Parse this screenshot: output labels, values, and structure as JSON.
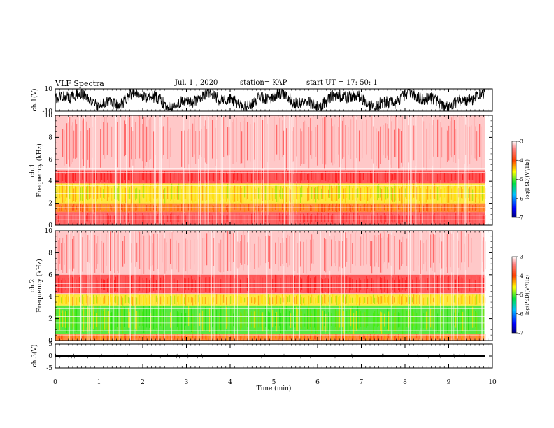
{
  "header": {
    "title": "VLF Spectra",
    "date": "Jul. 1 , 2020",
    "station": "station= KAP",
    "start": "start UT = 17: 50: 1"
  },
  "colors": {
    "spec_low": "#ff2020",
    "spec_mid": "#ffe000",
    "spec_high": "#20e000",
    "trace": "#000000"
  },
  "chart_data": [
    {
      "type": "line",
      "name": "ch1-waveform",
      "ylabel": "ch.1(V)",
      "ylim": [
        -10,
        10
      ],
      "yticks": [
        "10",
        "-10"
      ],
      "xlim": [
        0,
        10
      ]
    },
    {
      "type": "heatmap",
      "name": "ch1-spectrogram",
      "ylabel": "ch.1\nFrequency (kHz)",
      "ylabel_lines": [
        "ch.1",
        "Frequency (kHz)"
      ],
      "ylim": [
        0,
        10
      ],
      "yticks": [
        "0",
        "2",
        "4",
        "6",
        "8",
        "10"
      ],
      "bands": [
        {
          "from": 0,
          "to": 1.2,
          "level": "red"
        },
        {
          "from": 1.2,
          "to": 2.0,
          "level": "orange"
        },
        {
          "from": 2.0,
          "to": 3.8,
          "level": "yellow"
        },
        {
          "from": 3.8,
          "to": 5.0,
          "level": "red-dense"
        },
        {
          "from": 5.0,
          "to": 10,
          "level": "red-sparse"
        }
      ],
      "colorbar": {
        "label": "log(PSD)(V²/Hz)",
        "range": [
          -7,
          -3
        ],
        "ticks": [
          "-3",
          "-4",
          "-5",
          "-6",
          "-7"
        ]
      }
    },
    {
      "type": "heatmap",
      "name": "ch2-spectrogram",
      "ylabel": "ch.2\nFrequency (kHz)",
      "ylabel_lines": [
        "ch.2",
        "Frequency (kHz)"
      ],
      "ylim": [
        0,
        10
      ],
      "yticks": [
        "0",
        "2",
        "4",
        "6",
        "8",
        "10"
      ],
      "bands": [
        {
          "from": 0,
          "to": 0.6,
          "level": "orange"
        },
        {
          "from": 0.6,
          "to": 3.2,
          "level": "green"
        },
        {
          "from": 3.2,
          "to": 4.2,
          "level": "yellow"
        },
        {
          "from": 4.2,
          "to": 6.0,
          "level": "red-dense"
        },
        {
          "from": 6.0,
          "to": 10,
          "level": "red-sparse"
        }
      ],
      "colorbar": {
        "label": "log(PSD)(V²/Hz)",
        "range": [
          -7,
          -3
        ],
        "ticks": [
          "-3",
          "-4",
          "-5",
          "-6",
          "-7"
        ]
      }
    },
    {
      "type": "line",
      "name": "ch3-waveform",
      "ylabel": "ch.3(V)",
      "ylim": [
        -5,
        5
      ],
      "yticks": [
        "5",
        "0",
        "-5"
      ],
      "xlim": [
        0,
        10
      ]
    }
  ],
  "xaxis": {
    "label": "Time (min)",
    "ticks": [
      "0",
      "1",
      "2",
      "3",
      "4",
      "5",
      "6",
      "7",
      "8",
      "9",
      "10"
    ],
    "range": [
      0,
      10
    ],
    "data_end": 9.83
  }
}
